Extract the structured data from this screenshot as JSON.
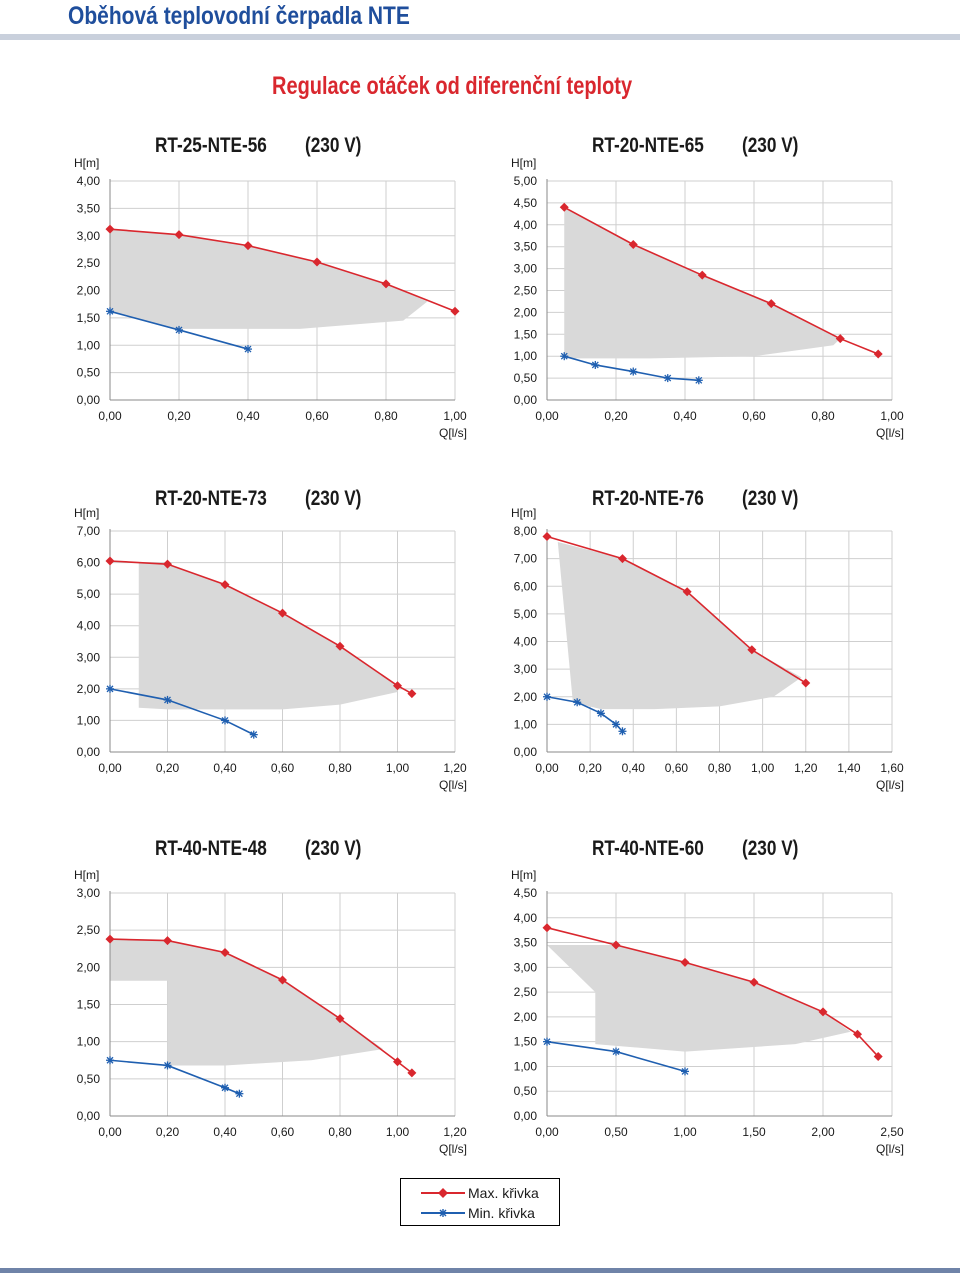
{
  "page": {
    "title": "Oběhová teplovodní čerpadla NTE",
    "subtitle": "Regulace otáček od diferenční teploty"
  },
  "colors": {
    "max": "#d9272e",
    "min": "#1f5fb0",
    "area": "#d9d9d9",
    "grid": "#cfcfcf",
    "axis": "#8a8a8a"
  },
  "legend": {
    "max_label": "Max. křivka",
    "min_label": "Min. křivka"
  },
  "chart_data": [
    {
      "type": "line",
      "title": "RT-25-NTE-56",
      "voltage": "(230 V)",
      "ylabel": "H[m]",
      "xlabel": "Q[l/s]",
      "xlim": [
        0,
        1.0
      ],
      "ylim": [
        0,
        4.0
      ],
      "xticks": [
        "0,00",
        "0,20",
        "0,40",
        "0,60",
        "0,80",
        "1,00"
      ],
      "yticks": [
        "0,00",
        "0,50",
        "1,00",
        "1,50",
        "2,00",
        "2,50",
        "3,00",
        "3,50",
        "4,00"
      ],
      "series": [
        {
          "key": "max",
          "x": [
            0,
            0.2,
            0.4,
            0.6,
            0.8,
            1.0
          ],
          "y": [
            3.12,
            3.02,
            2.82,
            2.52,
            2.12,
            1.62
          ]
        },
        {
          "key": "min",
          "x": [
            0,
            0.2,
            0.4
          ],
          "y": [
            1.62,
            1.28,
            0.93
          ]
        }
      ],
      "area": {
        "x": [
          0,
          0.1,
          0.2,
          0.4,
          0.6,
          0.8,
          0.92,
          0.85,
          0.55,
          0.4,
          0.2,
          0
        ],
        "y": [
          3.12,
          3.08,
          3.02,
          2.82,
          2.52,
          2.12,
          1.8,
          1.45,
          1.3,
          1.3,
          1.3,
          1.62
        ]
      }
    },
    {
      "type": "line",
      "title": "RT-20-NTE-65",
      "voltage": "(230 V)",
      "ylabel": "H[m]",
      "xlabel": "Q[l/s]",
      "xlim": [
        0,
        1.0
      ],
      "ylim": [
        0,
        5.0
      ],
      "xticks": [
        "0,00",
        "0,20",
        "0,40",
        "0,60",
        "0,80",
        "1,00"
      ],
      "yticks": [
        "0,00",
        "0,50",
        "1,00",
        "1,50",
        "2,00",
        "2,50",
        "3,00",
        "3,50",
        "4,00",
        "4,50",
        "5,00"
      ],
      "series": [
        {
          "key": "max",
          "x": [
            0.05,
            0.25,
            0.45,
            0.65,
            0.85,
            0.96
          ],
          "y": [
            4.4,
            3.55,
            2.85,
            2.2,
            1.4,
            1.05
          ]
        },
        {
          "key": "min",
          "x": [
            0.05,
            0.14,
            0.25,
            0.35,
            0.44
          ],
          "y": [
            1.0,
            0.8,
            0.65,
            0.5,
            0.45
          ]
        }
      ],
      "area": {
        "x": [
          0.05,
          0.25,
          0.45,
          0.65,
          0.85,
          0.83,
          0.6,
          0.3,
          0.07,
          0.05
        ],
        "y": [
          4.4,
          3.55,
          2.85,
          2.2,
          1.4,
          1.25,
          1.0,
          0.95,
          0.95,
          1.0
        ]
      }
    },
    {
      "type": "line",
      "title": "RT-20-NTE-73",
      "voltage": "(230 V)",
      "ylabel": "H[m]",
      "xlabel": "Q[l/s]",
      "xlim": [
        0,
        1.2
      ],
      "ylim": [
        0,
        7.0
      ],
      "xticks": [
        "0,00",
        "0,20",
        "0,40",
        "0,60",
        "0,80",
        "1,00",
        "1,20"
      ],
      "yticks": [
        "0,00",
        "1,00",
        "2,00",
        "3,00",
        "4,00",
        "5,00",
        "6,00",
        "7,00"
      ],
      "series": [
        {
          "key": "max",
          "x": [
            0,
            0.2,
            0.4,
            0.6,
            0.8,
            1.0,
            1.05
          ],
          "y": [
            6.05,
            5.95,
            5.3,
            4.4,
            3.35,
            2.1,
            1.85
          ]
        },
        {
          "key": "min",
          "x": [
            0,
            0.2,
            0.4,
            0.5
          ],
          "y": [
            2.0,
            1.65,
            1.0,
            0.55
          ]
        }
      ],
      "area": {
        "x": [
          0,
          0.2,
          0.4,
          0.6,
          0.8,
          1.0,
          1.0,
          0.8,
          0.6,
          0.4,
          0.2,
          0.1,
          0.1,
          0
        ],
        "y": [
          6.05,
          5.95,
          5.3,
          4.4,
          3.35,
          2.1,
          1.9,
          1.5,
          1.35,
          1.35,
          1.35,
          1.4,
          6.0,
          6.05
        ]
      }
    },
    {
      "type": "line",
      "title": "RT-20-NTE-76",
      "voltage": "(230 V)",
      "ylabel": "H[m]",
      "xlabel": "Q[l/s]",
      "xlim": [
        0,
        1.6
      ],
      "ylim": [
        0,
        8.0
      ],
      "xticks": [
        "0,00",
        "0,20",
        "0,40",
        "0,60",
        "0,80",
        "1,00",
        "1,20",
        "1,40",
        "1,60"
      ],
      "yticks": [
        "0,00",
        "1,00",
        "2,00",
        "3,00",
        "4,00",
        "5,00",
        "6,00",
        "7,00",
        "8,00"
      ],
      "series": [
        {
          "key": "max",
          "x": [
            0,
            0.35,
            0.65,
            0.95,
            1.2
          ],
          "y": [
            7.8,
            7.0,
            5.8,
            3.7,
            2.5
          ]
        },
        {
          "key": "min",
          "x": [
            0,
            0.14,
            0.25,
            0.32,
            0.35
          ],
          "y": [
            2.0,
            1.8,
            1.4,
            1.0,
            0.75
          ]
        }
      ],
      "area": {
        "x": [
          0.05,
          0.35,
          0.65,
          0.95,
          1.18,
          1.05,
          0.8,
          0.5,
          0.25,
          0.12,
          0.05
        ],
        "y": [
          7.6,
          7.0,
          5.8,
          3.7,
          2.7,
          2.0,
          1.65,
          1.55,
          1.55,
          1.8,
          7.6
        ]
      }
    },
    {
      "type": "line",
      "title": "RT-40-NTE-48",
      "voltage": "(230 V)",
      "ylabel": "H[m]",
      "xlabel": "Q[l/s]",
      "xlim": [
        0,
        1.2
      ],
      "ylim": [
        0,
        3.0
      ],
      "xticks": [
        "0,00",
        "0,20",
        "0,40",
        "0,60",
        "0,80",
        "1,00",
        "1,20"
      ],
      "yticks": [
        "0,00",
        "0,50",
        "1,00",
        "1,50",
        "2,00",
        "2,50",
        "3,00"
      ],
      "series": [
        {
          "key": "max",
          "x": [
            0,
            0.2,
            0.4,
            0.6,
            0.8,
            1.0,
            1.05
          ],
          "y": [
            2.38,
            2.36,
            2.2,
            1.83,
            1.31,
            0.73,
            0.58
          ]
        },
        {
          "key": "min",
          "x": [
            0,
            0.2,
            0.4,
            0.45
          ],
          "y": [
            0.75,
            0.68,
            0.38,
            0.3
          ]
        }
      ],
      "area": {
        "x": [
          0,
          0.2,
          0.4,
          0.6,
          0.8,
          0.95,
          0.7,
          0.4,
          0.2,
          0.2,
          0
        ],
        "y": [
          2.38,
          2.36,
          2.2,
          1.83,
          1.31,
          0.9,
          0.75,
          0.68,
          0.68,
          1.82,
          1.82
        ]
      }
    },
    {
      "type": "line",
      "title": "RT-40-NTE-60",
      "voltage": "(230 V)",
      "ylabel": "H[m]",
      "xlabel": "Q[l/s]",
      "xlim": [
        0,
        2.5
      ],
      "ylim": [
        0,
        4.5
      ],
      "xticks": [
        "0,00",
        "0,50",
        "1,00",
        "1,50",
        "2,00",
        "2,50"
      ],
      "yticks": [
        "0,00",
        "0,50",
        "1,00",
        "1,50",
        "2,00",
        "2,50",
        "3,00",
        "3,50",
        "4,00",
        "4,50"
      ],
      "series": [
        {
          "key": "max",
          "x": [
            0,
            0.5,
            1.0,
            1.5,
            2.0,
            2.25,
            2.4
          ],
          "y": [
            3.8,
            3.45,
            3.1,
            2.7,
            2.1,
            1.65,
            1.2
          ]
        },
        {
          "key": "min",
          "x": [
            0,
            0.5,
            1.0
          ],
          "y": [
            1.5,
            1.3,
            0.9
          ]
        }
      ],
      "area": {
        "x": [
          0,
          0.5,
          1.0,
          1.5,
          2.0,
          2.2,
          1.8,
          1.0,
          0.35,
          0.35,
          0
        ],
        "y": [
          3.45,
          3.45,
          3.1,
          2.7,
          2.1,
          1.7,
          1.45,
          1.3,
          1.45,
          2.5,
          3.45
        ]
      }
    }
  ]
}
